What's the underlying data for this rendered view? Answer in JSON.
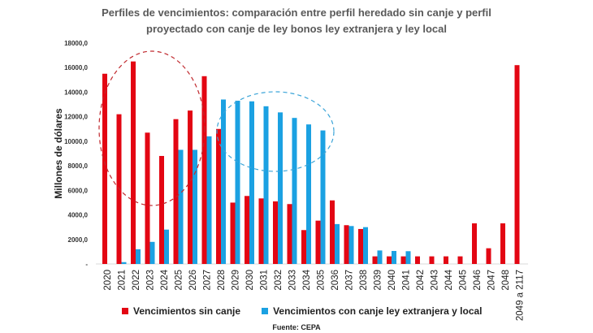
{
  "chart_data": {
    "type": "bar",
    "title": "Perfiles de vencimientos: comparación entre perfil heredado sin canje y perfil proyectado con canje de ley bonos ley extranjera y ley local",
    "xlabel": "",
    "ylabel": "Millones de dólares",
    "ylim": [
      0,
      18000
    ],
    "yticks": [
      "-",
      "2000,0",
      "4000,0",
      "6000,0",
      "8000,0",
      "10000,0",
      "12000,0",
      "14000,0",
      "16000,0",
      "18000,0"
    ],
    "grid": false,
    "legend": "bottom",
    "categories": [
      "2020",
      "2021",
      "2022",
      "2023",
      "2024",
      "2025",
      "2026",
      "2027",
      "2028",
      "2029",
      "2030",
      "2031",
      "2032",
      "2033",
      "2034",
      "2035",
      "2036",
      "2037",
      "2038",
      "2039",
      "2040",
      "2041",
      "2042",
      "2043",
      "2044",
      "2045",
      "2046",
      "2047",
      "2048",
      "2049 a 2117"
    ],
    "series": [
      {
        "name": "Vencimientos sin canje",
        "color": "#e30613",
        "values": [
          15500,
          12200,
          16500,
          10700,
          8800,
          11800,
          12500,
          15300,
          11000,
          5000,
          5540,
          5340,
          5100,
          4880,
          2760,
          3530,
          5180,
          3160,
          2850,
          620,
          620,
          620,
          620,
          620,
          620,
          620,
          3310,
          1280,
          3310,
          16200
        ]
      },
      {
        "name": "Vencimientos con canje ley extranjera y local",
        "color": "#1ba1e2",
        "values": [
          0,
          150,
          1200,
          1800,
          2800,
          9300,
          9300,
          10400,
          13400,
          13300,
          13250,
          12850,
          12350,
          11900,
          11370,
          10880,
          3250,
          3090,
          3000,
          1100,
          1060,
          1040,
          0,
          0,
          0,
          0,
          0,
          0,
          0,
          0
        ]
      }
    ],
    "source": "Fuente: CEPA"
  }
}
